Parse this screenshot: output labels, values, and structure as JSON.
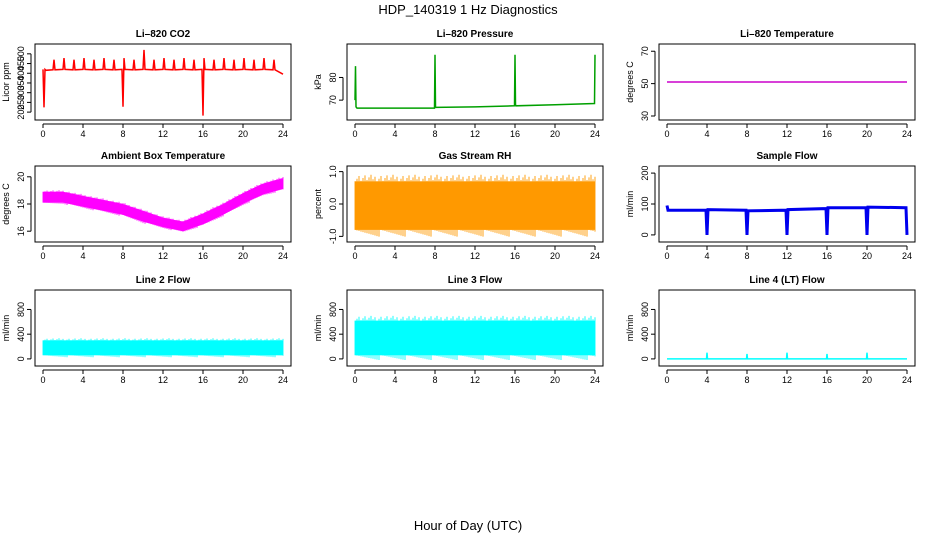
{
  "title": "HDP_140319  1 Hz Diagnostics",
  "xlabel": "Hour of Day (UTC)",
  "chart_data": [
    {
      "type": "line",
      "title": "Li–820 CO2",
      "ylabel": "Licor ppm",
      "xlim": [
        0,
        24
      ],
      "ylim": [
        180,
        530
      ],
      "xticks": [
        "0",
        "4",
        "8",
        "12",
        "16",
        "20",
        "24"
      ],
      "yticks": [
        "200",
        "250",
        "300",
        "350",
        "400",
        "450",
        "500"
      ],
      "color": "#ff0000",
      "series": [
        {
          "x": [
            0,
            0.1,
            0.2,
            0.3,
            1.0,
            1.1,
            1.2,
            2.0,
            2.1,
            2.2,
            3.0,
            3.1,
            3.2,
            4.0,
            4.1,
            4.2,
            5.0,
            5.1,
            5.2,
            6.0,
            6.1,
            6.2,
            7.0,
            7.1,
            7.2,
            7.9,
            8.0,
            8.1,
            8.2,
            9.0,
            9.1,
            9.2,
            10.0,
            10.1,
            10.2,
            11.0,
            11.1,
            11.2,
            12.0,
            12.1,
            12.2,
            13.0,
            13.1,
            13.2,
            14.0,
            14.1,
            14.2,
            15.0,
            15.1,
            15.2,
            15.9,
            16.0,
            16.1,
            16.2,
            17.0,
            17.1,
            17.2,
            18.0,
            18.1,
            18.2,
            19.0,
            19.1,
            19.2,
            20.0,
            20.1,
            20.2,
            21.0,
            21.1,
            21.2,
            22.0,
            22.1,
            22.2,
            23.0,
            23.1,
            23.2,
            24.0
          ],
          "y": [
            420,
            225,
            420,
            415,
            418,
            470,
            418,
            420,
            478,
            420,
            418,
            470,
            418,
            420,
            478,
            420,
            418,
            470,
            418,
            420,
            478,
            420,
            418,
            470,
            418,
            420,
            228,
            478,
            420,
            418,
            470,
            418,
            420,
            520,
            420,
            418,
            470,
            418,
            420,
            478,
            420,
            418,
            470,
            418,
            420,
            478,
            420,
            418,
            470,
            418,
            420,
            182,
            478,
            420,
            418,
            470,
            418,
            420,
            478,
            420,
            418,
            470,
            418,
            420,
            478,
            420,
            418,
            470,
            418,
            420,
            478,
            420,
            418,
            470,
            418,
            395
          ]
        }
      ]
    },
    {
      "type": "line",
      "title": "Li–820 Pressure",
      "ylabel": "kPa",
      "xlim": [
        0,
        24
      ],
      "ylim": [
        63,
        93
      ],
      "xticks": [
        "0",
        "4",
        "8",
        "12",
        "16",
        "20",
        "24"
      ],
      "yticks": [
        "70",
        "80"
      ],
      "color": "#00a000",
      "series": [
        {
          "x": [
            0,
            0.05,
            0.1,
            0.2,
            1,
            4,
            7.95,
            8.0,
            8.05,
            8.1,
            12,
            15.95,
            16.0,
            16.05,
            16.1,
            20,
            23.95,
            24.0
          ],
          "y": [
            70,
            85,
            67,
            66.5,
            66.5,
            66.5,
            66.5,
            90,
            67,
            66.8,
            67,
            67.5,
            90,
            68,
            67.5,
            68,
            68.5,
            90
          ]
        }
      ]
    },
    {
      "type": "line",
      "title": "Li–820 Temperature",
      "ylabel": "degrees C",
      "xlim": [
        0,
        24
      ],
      "ylim": [
        30,
        72
      ],
      "xticks": [
        "0",
        "4",
        "8",
        "12",
        "16",
        "20",
        "24"
      ],
      "yticks": [
        "30",
        "50",
        "70"
      ],
      "color": "#cc00cc",
      "series": [
        {
          "x": [
            0,
            24
          ],
          "y": [
            51,
            51
          ]
        }
      ]
    },
    {
      "type": "area",
      "title": "Ambient Box Temperature",
      "ylabel": "degrees C",
      "xlim": [
        0,
        24
      ],
      "ylim": [
        15.5,
        20.5
      ],
      "xticks": [
        "0",
        "4",
        "8",
        "12",
        "16",
        "20",
        "24"
      ],
      "yticks": [
        "16",
        "18",
        "20"
      ],
      "color": "#ff00ff",
      "series": [
        {
          "x": [
            0,
            2,
            4,
            6,
            8,
            10,
            12,
            14,
            16,
            18,
            20,
            22,
            24
          ],
          "upper": [
            18.9,
            18.9,
            18.6,
            18.3,
            18.0,
            17.5,
            17.0,
            16.7,
            17.3,
            18.0,
            18.8,
            19.5,
            19.9
          ],
          "lower": [
            18.1,
            18.1,
            17.8,
            17.5,
            17.2,
            16.7,
            16.3,
            16.0,
            16.5,
            17.2,
            18.0,
            18.7,
            19.1
          ]
        }
      ]
    },
    {
      "type": "area",
      "title": "Gas Stream RH",
      "ylabel": "percent",
      "xlim": [
        0,
        24
      ],
      "ylim": [
        -1.05,
        1.05
      ],
      "xticks": [
        "0",
        "4",
        "8",
        "12",
        "16",
        "20",
        "24"
      ],
      "yticks": [
        "-1.0",
        "0.0",
        "1.0"
      ],
      "color": "#ff9900",
      "series": [
        {
          "x": [
            0,
            24
          ],
          "upper": [
            0.7,
            0.7
          ],
          "lower": [
            -0.8,
            -0.8
          ]
        }
      ]
    },
    {
      "type": "line",
      "title": "Sample Flow",
      "ylabel": "ml/min",
      "xlim": [
        0,
        24
      ],
      "ylim": [
        -10,
        210
      ],
      "xticks": [
        "0",
        "4",
        "8",
        "12",
        "16",
        "20",
        "24"
      ],
      "yticks": [
        "0",
        "100",
        "200"
      ],
      "color": "#0000ee",
      "series": [
        {
          "x": [
            0,
            0.1,
            3.9,
            4.0,
            4.1,
            7.9,
            8.0,
            8.1,
            11.9,
            12.0,
            12.1,
            15.9,
            16.0,
            16.1,
            19.9,
            20.0,
            20.1,
            23.9,
            24.0
          ],
          "y": [
            95,
            80,
            80,
            0,
            82,
            80,
            0,
            78,
            80,
            0,
            82,
            85,
            0,
            88,
            88,
            0,
            90,
            88,
            0
          ]
        }
      ]
    },
    {
      "type": "area",
      "title": "Line 2 Flow",
      "ylabel": "ml/min",
      "xlim": [
        0,
        24
      ],
      "ylim": [
        -50,
        1050
      ],
      "xticks": [
        "0",
        "4",
        "8",
        "12",
        "16",
        "20",
        "24"
      ],
      "yticks": [
        "0",
        "400",
        "800"
      ],
      "color": "#00ffff",
      "series": [
        {
          "x": [
            0,
            24
          ],
          "upper": [
            300,
            300
          ],
          "lower": [
            60,
            60
          ]
        }
      ]
    },
    {
      "type": "area",
      "title": "Line 3 Flow",
      "ylabel": "ml/min",
      "xlim": [
        0,
        24
      ],
      "ylim": [
        -50,
        1050
      ],
      "xticks": [
        "0",
        "4",
        "8",
        "12",
        "16",
        "20",
        "24"
      ],
      "yticks": [
        "0",
        "400",
        "800"
      ],
      "color": "#00ffff",
      "series": [
        {
          "x": [
            0,
            24
          ],
          "upper": [
            620,
            620
          ],
          "lower": [
            60,
            60
          ]
        }
      ]
    },
    {
      "type": "line",
      "title": "Line 4 (LT) Flow",
      "ylabel": "ml/min",
      "xlim": [
        0,
        24
      ],
      "ylim": [
        -50,
        1050
      ],
      "xticks": [
        "0",
        "4",
        "8",
        "12",
        "16",
        "20",
        "24"
      ],
      "yticks": [
        "0",
        "400",
        "800"
      ],
      "color": "#00ffff",
      "series": [
        {
          "x": [
            0,
            3.95,
            4.0,
            4.05,
            7.95,
            8.0,
            8.05,
            11.95,
            12.0,
            12.05,
            15.95,
            16.0,
            16.05,
            19.95,
            20.0,
            20.05,
            24.0
          ],
          "y": [
            0,
            0,
            100,
            0,
            0,
            80,
            0,
            0,
            100,
            0,
            0,
            80,
            0,
            0,
            100,
            0,
            0
          ]
        }
      ]
    }
  ]
}
